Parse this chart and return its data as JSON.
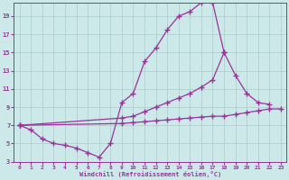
{
  "bg_color": "#cde8e8",
  "line_color": "#993399",
  "marker": "+",
  "markersize": 4,
  "linewidth": 0.9,
  "xlabel": "Windchill (Refroidissement éolien,°C)",
  "xlim": [
    -0.5,
    23.5
  ],
  "ylim": [
    3,
    20.5
  ],
  "xticks": [
    0,
    1,
    2,
    3,
    4,
    5,
    6,
    7,
    8,
    9,
    10,
    11,
    12,
    13,
    14,
    15,
    16,
    17,
    18,
    19,
    20,
    21,
    22,
    23
  ],
  "yticks": [
    3,
    5,
    7,
    9,
    11,
    13,
    15,
    17,
    19
  ],
  "grid_color": "#aacccc",
  "curve_upper": {
    "x": [
      0,
      1,
      2,
      3,
      4,
      5,
      6,
      7,
      8,
      9,
      10,
      11,
      12,
      13,
      14,
      15,
      16,
      17,
      18
    ],
    "y": [
      7.0,
      6.5,
      5.5,
      5.0,
      4.8,
      4.5,
      4.0,
      3.5,
      5.0,
      9.5,
      10.5,
      14.0,
      15.5,
      17.5,
      19.0,
      19.5,
      20.5,
      20.5,
      15.0
    ]
  },
  "curve_mid": {
    "x": [
      0,
      9,
      10,
      11,
      12,
      13,
      14,
      15,
      16,
      17,
      18,
      19,
      20,
      21,
      22
    ],
    "y": [
      7.0,
      7.8,
      8.0,
      8.5,
      9.0,
      9.5,
      10.0,
      10.5,
      11.2,
      12.0,
      15.0,
      12.5,
      10.5,
      9.5,
      9.3
    ]
  },
  "curve_lower": {
    "x": [
      0,
      9,
      10,
      11,
      12,
      13,
      14,
      15,
      16,
      17,
      18,
      19,
      20,
      21,
      22,
      23
    ],
    "y": [
      7.0,
      7.2,
      7.3,
      7.4,
      7.5,
      7.6,
      7.7,
      7.8,
      7.9,
      8.0,
      8.0,
      8.2,
      8.4,
      8.6,
      8.8,
      8.8
    ]
  }
}
